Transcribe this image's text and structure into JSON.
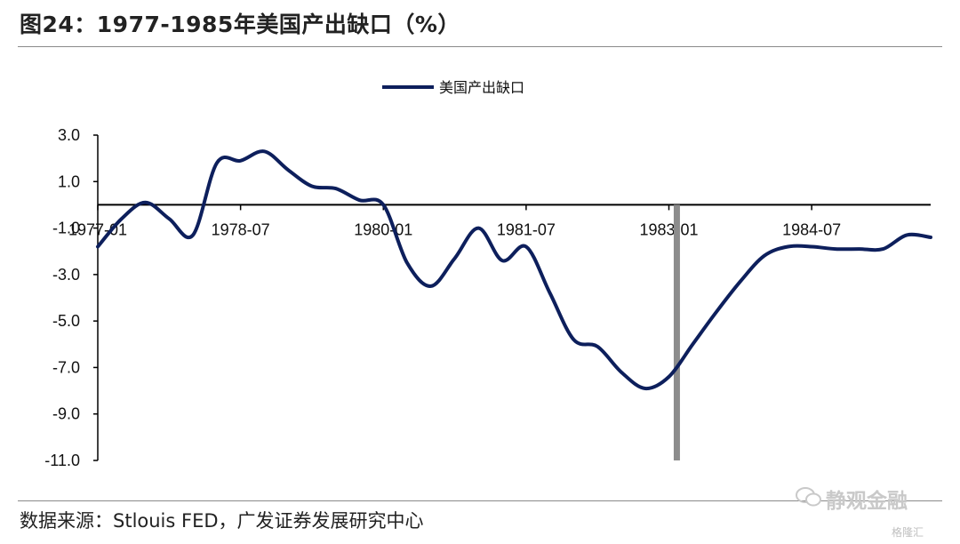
{
  "header": {
    "title": "图24：1977-1985年美国产出缺口（%）"
  },
  "footer": {
    "source": "数据来源：Stlouis FED，广发证券发展研究中心"
  },
  "watermark": {
    "text": "静观金融",
    "small": "格隆汇"
  },
  "colors": {
    "series": "#0d1f5c",
    "marker": "#8c8c8c"
  },
  "chart_data": {
    "type": "line",
    "title": "",
    "xlabel": "",
    "ylabel": "",
    "ylim": [
      -11.0,
      3.0
    ],
    "yticks": [
      3.0,
      1.0,
      -1.0,
      -3.0,
      -5.0,
      -7.0,
      -9.0,
      -11.0
    ],
    "ytick_labels": [
      "3.0",
      "1.0",
      "-1.0",
      "-3.0",
      "-5.0",
      "-7.0",
      "-9.0",
      "-11.0"
    ],
    "xticks": [
      "1977-01",
      "1978-07",
      "1980-01",
      "1981-07",
      "1983-01",
      "1984-07"
    ],
    "x_axis_crosses_y_at": 0,
    "legend": {
      "position": "top",
      "entries": [
        "美国产出缺口"
      ]
    },
    "series": [
      {
        "name": "美国产出缺口",
        "x": [
          "1977-01",
          "1977-04",
          "1977-07",
          "1977-10",
          "1978-01",
          "1978-04",
          "1978-07",
          "1978-10",
          "1979-01",
          "1979-04",
          "1979-07",
          "1979-10",
          "1980-01",
          "1980-04",
          "1980-07",
          "1980-10",
          "1981-01",
          "1981-04",
          "1981-07",
          "1981-10",
          "1982-01",
          "1982-04",
          "1982-07",
          "1982-10",
          "1983-01",
          "1983-04",
          "1983-07",
          "1983-10",
          "1984-01",
          "1984-04",
          "1984-07",
          "1984-10",
          "1985-01",
          "1985-04",
          "1985-07",
          "1985-10"
        ],
        "values": [
          -1.8,
          -0.6,
          0.1,
          -0.6,
          -1.3,
          1.8,
          1.9,
          2.3,
          1.5,
          0.8,
          0.7,
          0.2,
          0.0,
          -2.5,
          -3.5,
          -2.3,
          -1.0,
          -2.4,
          -1.8,
          -3.8,
          -5.8,
          -6.1,
          -7.2,
          -7.9,
          -7.4,
          -6.0,
          -4.6,
          -3.3,
          -2.2,
          -1.8,
          -1.8,
          -1.9,
          -1.9,
          -1.9,
          -1.3,
          -1.4
        ]
      }
    ],
    "annotations": [
      {
        "type": "vertical_band",
        "x": "1983-02",
        "y_from": -11.0,
        "y_to": 0.0
      }
    ]
  }
}
